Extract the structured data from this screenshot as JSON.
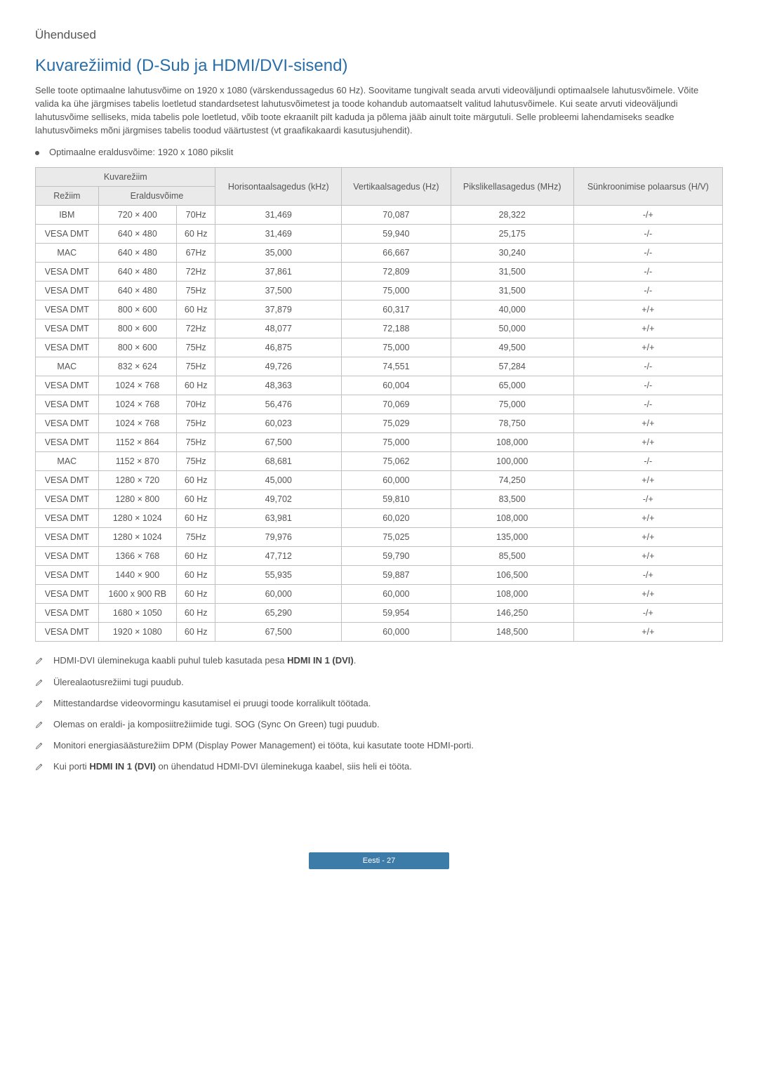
{
  "header": "Ühendused",
  "title": "Kuvarežiimid (D-Sub ja HDMI/DVI-sisend)",
  "intro": "Selle toote optimaalne lahutusvõime on 1920 x 1080 (värskendussagedus 60 Hz). Soovitame tungivalt seada arvuti videoväljundi optimaalsele lahutusvõimele. Võite valida ka ühe järgmises tabelis loetletud standardsetest lahutusvõimetest ja toode kohandub automaatselt valitud lahutusvõimele. Kui seate arvuti videoväljundi lahutusvõime selliseks, mida tabelis pole loetletud, võib toote ekraanilt pilt kaduda ja põlema jääb ainult toite märgutuli. Selle probleemi lahendamiseks seadke lahutusvõimeks mõni järgmises tabelis toodud väärtustest (vt graafikakaardi kasutusjuhendit).",
  "bullet": "Optimaalne eraldusvõime: 1920 x 1080 pikslit",
  "table": {
    "head": {
      "kuvareziim": "Kuvarežiim",
      "horis": "Horisontaalsagedus (kHz)",
      "vert": "Vertikaalsagedus (Hz)",
      "pixel": "Pikslikellasagedus (MHz)",
      "sync": "Sünkroonimise polaarsus (H/V)",
      "reziim": "Režiim",
      "eraldus": "Eraldusvõime"
    },
    "rows": [
      [
        "IBM",
        "720 × 400",
        "70Hz",
        "31,469",
        "70,087",
        "28,322",
        "-/+"
      ],
      [
        "VESA DMT",
        "640 × 480",
        "60 Hz",
        "31,469",
        "59,940",
        "25,175",
        "-/-"
      ],
      [
        "MAC",
        "640 × 480",
        "67Hz",
        "35,000",
        "66,667",
        "30,240",
        "-/-"
      ],
      [
        "VESA DMT",
        "640 × 480",
        "72Hz",
        "37,861",
        "72,809",
        "31,500",
        "-/-"
      ],
      [
        "VESA DMT",
        "640 × 480",
        "75Hz",
        "37,500",
        "75,000",
        "31,500",
        "-/-"
      ],
      [
        "VESA DMT",
        "800 × 600",
        "60 Hz",
        "37,879",
        "60,317",
        "40,000",
        "+/+"
      ],
      [
        "VESA DMT",
        "800 × 600",
        "72Hz",
        "48,077",
        "72,188",
        "50,000",
        "+/+"
      ],
      [
        "VESA DMT",
        "800 × 600",
        "75Hz",
        "46,875",
        "75,000",
        "49,500",
        "+/+"
      ],
      [
        "MAC",
        "832 × 624",
        "75Hz",
        "49,726",
        "74,551",
        "57,284",
        "-/-"
      ],
      [
        "VESA DMT",
        "1024 × 768",
        "60 Hz",
        "48,363",
        "60,004",
        "65,000",
        "-/-"
      ],
      [
        "VESA DMT",
        "1024 × 768",
        "70Hz",
        "56,476",
        "70,069",
        "75,000",
        "-/-"
      ],
      [
        "VESA DMT",
        "1024 × 768",
        "75Hz",
        "60,023",
        "75,029",
        "78,750",
        "+/+"
      ],
      [
        "VESA DMT",
        "1152 × 864",
        "75Hz",
        "67,500",
        "75,000",
        "108,000",
        "+/+"
      ],
      [
        "MAC",
        "1152 × 870",
        "75Hz",
        "68,681",
        "75,062",
        "100,000",
        "-/-"
      ],
      [
        "VESA DMT",
        "1280 × 720",
        "60 Hz",
        "45,000",
        "60,000",
        "74,250",
        "+/+"
      ],
      [
        "VESA DMT",
        "1280 × 800",
        "60 Hz",
        "49,702",
        "59,810",
        "83,500",
        "-/+"
      ],
      [
        "VESA DMT",
        "1280 × 1024",
        "60 Hz",
        "63,981",
        "60,020",
        "108,000",
        "+/+"
      ],
      [
        "VESA DMT",
        "1280 × 1024",
        "75Hz",
        "79,976",
        "75,025",
        "135,000",
        "+/+"
      ],
      [
        "VESA DMT",
        "1366 × 768",
        "60 Hz",
        "47,712",
        "59,790",
        "85,500",
        "+/+"
      ],
      [
        "VESA DMT",
        "1440 × 900",
        "60 Hz",
        "55,935",
        "59,887",
        "106,500",
        "-/+"
      ],
      [
        "VESA DMT",
        "1600 x 900 RB",
        "60 Hz",
        "60,000",
        "60,000",
        "108,000",
        "+/+"
      ],
      [
        "VESA DMT",
        "1680 × 1050",
        "60 Hz",
        "65,290",
        "59,954",
        "146,250",
        "-/+"
      ],
      [
        "VESA DMT",
        "1920 × 1080",
        "60 Hz",
        "67,500",
        "60,000",
        "148,500",
        "+/+"
      ]
    ]
  },
  "notes": [
    {
      "pre": "HDMI-DVI üleminekuga kaabli puhul tuleb kasutada pesa ",
      "bold": "HDMI IN 1 (DVI)",
      "post": "."
    },
    {
      "pre": "Ülerealaotusrežiimi tugi puudub.",
      "bold": "",
      "post": ""
    },
    {
      "pre": "Mittestandardse videovormingu kasutamisel ei pruugi toode korralikult töötada.",
      "bold": "",
      "post": ""
    },
    {
      "pre": "Olemas on eraldi- ja komposiitrežiimide tugi. SOG (Sync On Green) tugi puudub.",
      "bold": "",
      "post": ""
    },
    {
      "pre": "Monitori energiasäästurežiim DPM (Display Power Management) ei tööta, kui kasutate toote HDMI-porti.",
      "bold": "",
      "post": ""
    },
    {
      "pre": "Kui porti ",
      "bold": "HDMI IN 1 (DVI)",
      "post": " on ühendatud HDMI-DVI üleminekuga kaabel, siis heli ei tööta."
    }
  ],
  "footer": "Eesti - 27",
  "style": {
    "header_bg": "#eaeaea",
    "border_color": "#c0c0c0",
    "title_color": "#2a6ea8",
    "footer_bg": "#3d7ba8"
  }
}
